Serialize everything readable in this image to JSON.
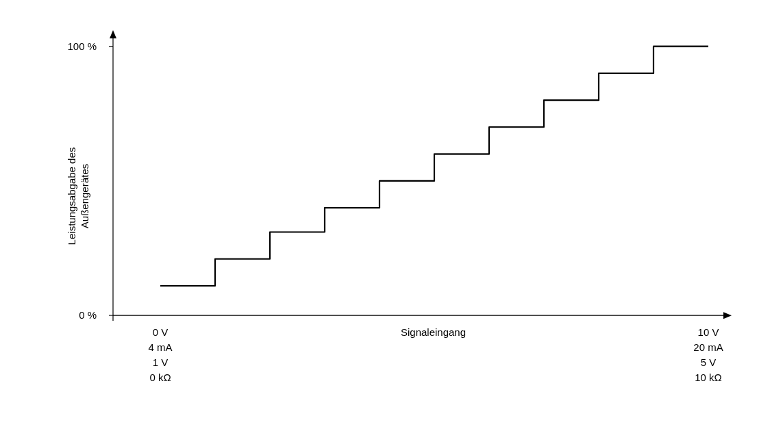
{
  "chart_data": {
    "type": "step",
    "xlabel": "Signaleingang",
    "ylabel": "Leistungsabgabe des\nAußengerätes",
    "categories": [
      "0 V\n4 mA\n1 V\n0 kΩ",
      null,
      null,
      null,
      null,
      null,
      null,
      null,
      null,
      null,
      "10 V\n20 mA\n5 V\n10 kΩ"
    ],
    "values": [
      11,
      21,
      31,
      40,
      50,
      60,
      70,
      80,
      90,
      100,
      100
    ],
    "color": "#000000",
    "ylim": [
      -2,
      104
    ],
    "yticks": [
      {
        "value": 0,
        "label": "0 %"
      },
      {
        "value": 100,
        "label": "100 %"
      }
    ],
    "grid": false
  }
}
